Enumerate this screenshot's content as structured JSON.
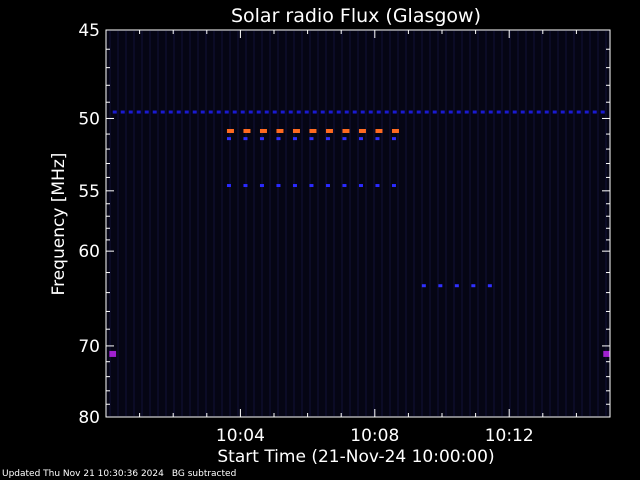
{
  "chart_data": {
    "type": "heatmap",
    "title": "Solar radio Flux (Glasgow)",
    "xlabel": "Start Time (21-Nov-24 10:00:00)",
    "ylabel": "Frequency [MHz]",
    "xlim": [
      0,
      15
    ],
    "ylim": [
      80,
      45
    ],
    "yscale": "reciprocal",
    "x_ticks": [
      {
        "value": 4,
        "label": "10:04"
      },
      {
        "value": 8,
        "label": "10:08"
      },
      {
        "value": 12,
        "label": "10:12"
      }
    ],
    "y_ticks": [
      {
        "value": 45,
        "label": "45"
      },
      {
        "value": 50,
        "label": "50"
      },
      {
        "value": 55,
        "label": "55"
      },
      {
        "value": 60,
        "label": "60"
      },
      {
        "value": 70,
        "label": "70"
      },
      {
        "value": 80,
        "label": "80"
      }
    ],
    "background_color": "#050514",
    "signals": [
      {
        "freq": 49.6,
        "x_start": 0.2,
        "x_end": 14.9,
        "color": "#1a1ad0",
        "level": "low"
      },
      {
        "freq": 50.8,
        "x_start": 3.6,
        "x_end": 8.7,
        "color": "#ff6a20",
        "level": "high"
      },
      {
        "freq": 51.3,
        "x_start": 3.6,
        "x_end": 8.7,
        "color": "#3030ff",
        "level": "medium"
      },
      {
        "freq": 54.6,
        "x_start": 3.6,
        "x_end": 8.7,
        "color": "#2a2aff",
        "level": "medium"
      },
      {
        "freq": 63.3,
        "x_start": 9.4,
        "x_end": 11.5,
        "color": "#3030ff",
        "level": "medium"
      },
      {
        "freq": 71.0,
        "x_start": 0.1,
        "x_end": 0.3,
        "color": "#a020d0",
        "level": "medium"
      },
      {
        "freq": 71.0,
        "x_start": 14.8,
        "x_end": 15.0,
        "color": "#a020d0",
        "level": "medium"
      }
    ]
  },
  "footer": {
    "updated": "Updated Thu Nov 21 10:30:36 2024",
    "note": "BG subtracted"
  }
}
